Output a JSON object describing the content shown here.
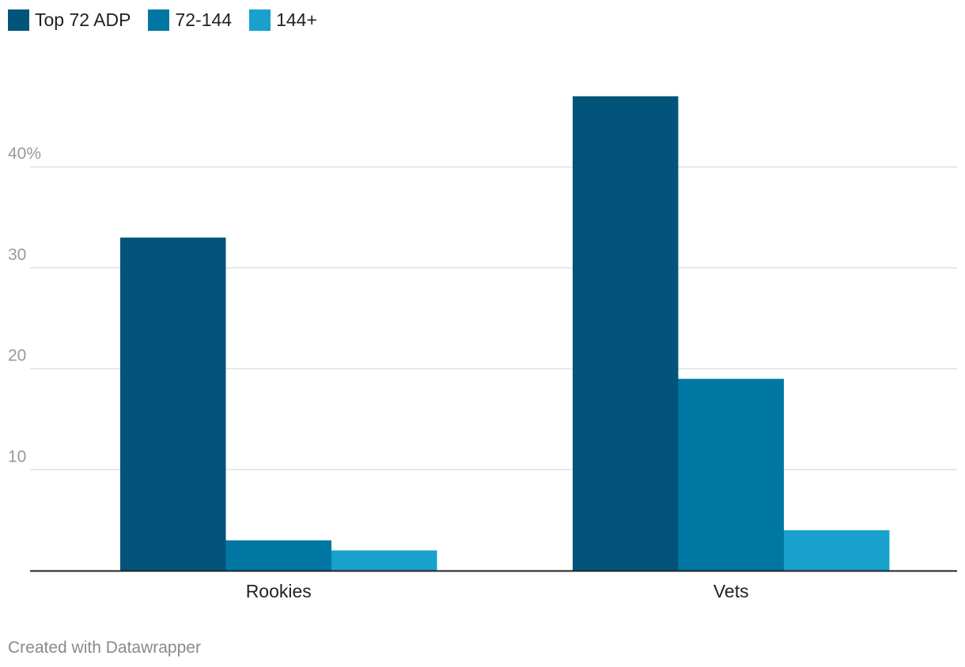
{
  "chart_data": {
    "type": "bar",
    "categories": [
      "Rookies",
      "Vets"
    ],
    "series": [
      {
        "name": "Top 72 ADP",
        "values": [
          33,
          47
        ],
        "color": "#02547a"
      },
      {
        "name": "72-144",
        "values": [
          3,
          19
        ],
        "color": "#0077a3"
      },
      {
        "name": "144+",
        "values": [
          2,
          4
        ],
        "color": "#18a1cd"
      }
    ],
    "yticks": [
      {
        "value": 10,
        "label": "10"
      },
      {
        "value": 20,
        "label": "20"
      },
      {
        "value": 30,
        "label": "30"
      },
      {
        "value": 40,
        "label": "40%"
      }
    ],
    "ylim": [
      0,
      47
    ],
    "grid": true,
    "legend_position": "top-left",
    "gridline_color": "#e0e0e0",
    "axis_color": "#222222",
    "tick_label_color": "#999999",
    "title": "",
    "xlabel": "",
    "ylabel": ""
  },
  "footer": {
    "credit": "Created with Datawrapper"
  }
}
